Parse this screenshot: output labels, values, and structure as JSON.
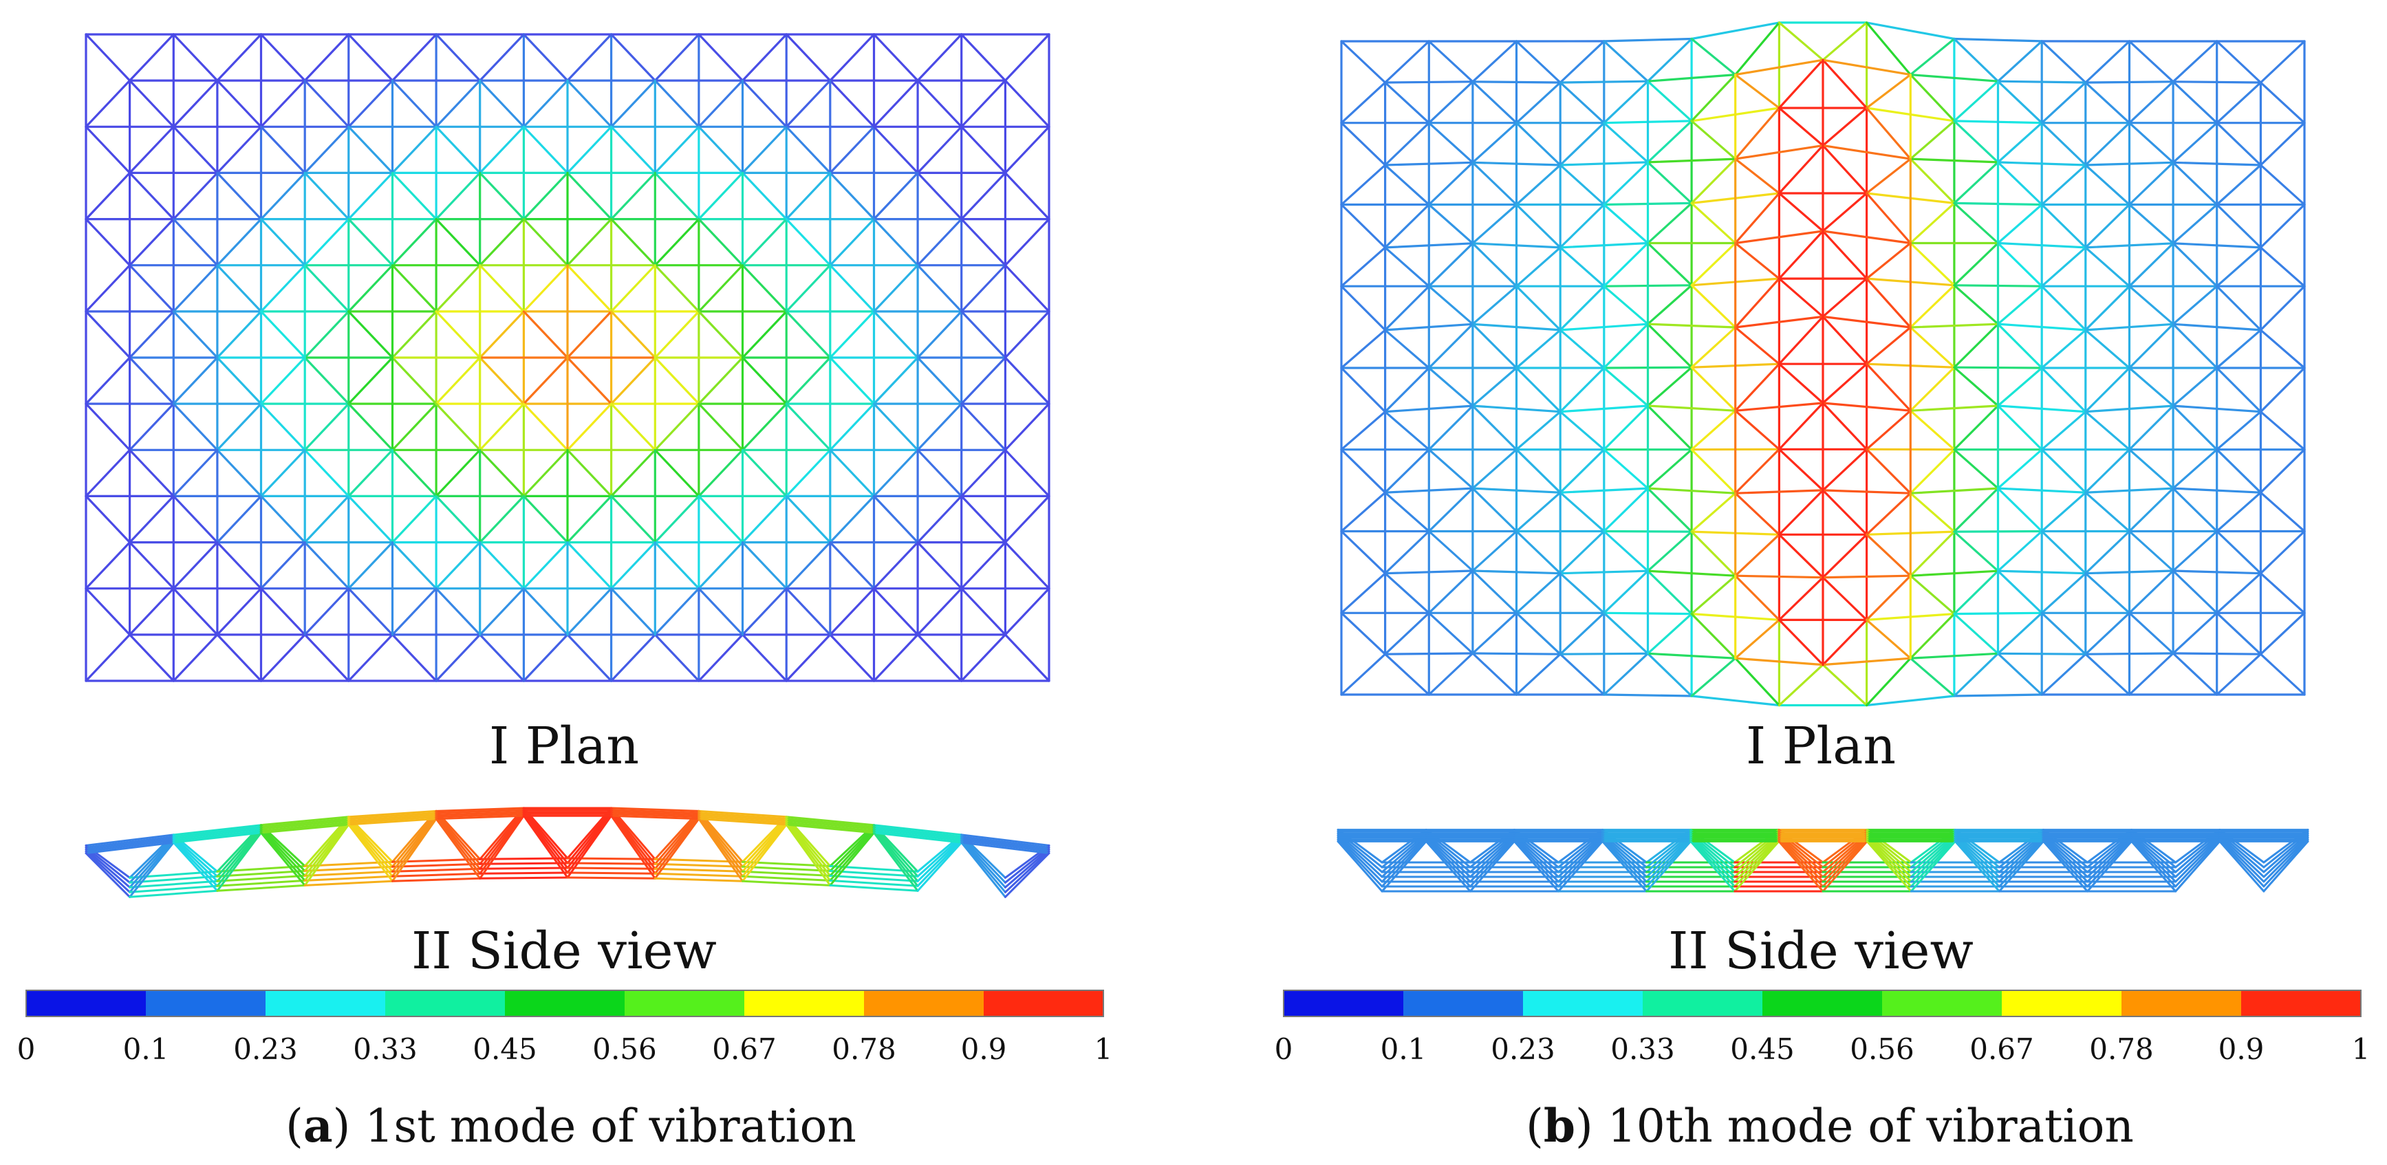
{
  "panels": [
    {
      "plan_label": "I Plan",
      "side_label": "II Side view",
      "caption_letter": "a",
      "caption_text": "1st mode of vibration"
    },
    {
      "plan_label": "I Plan",
      "side_label": "II Side view",
      "caption_letter": "b",
      "caption_text": "10th mode of vibration"
    }
  ],
  "colorbar": {
    "ticks": [
      "0",
      "0.1",
      "0.23",
      "0.33",
      "0.45",
      "0.56",
      "0.67",
      "0.78",
      "0.9",
      "1"
    ],
    "colors": [
      "#0a14e6",
      "#1a6ee8",
      "#19f0f0",
      "#10f0a0",
      "#0bd61b",
      "#55f01c",
      "#ffff00",
      "#ff9400",
      "#ff2a10"
    ]
  },
  "mode_colors": {
    "low": "#4a4ae6",
    "mid": "#19e6e6",
    "midhigh": "#2ad82a",
    "high": "#f2f21a",
    "peak": "#ff2a1a"
  }
}
